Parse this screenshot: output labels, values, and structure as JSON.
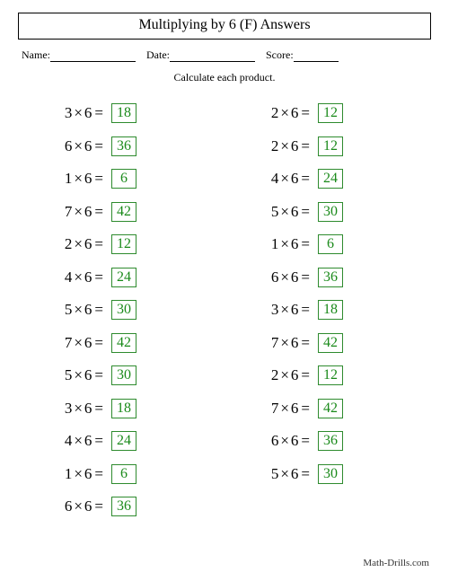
{
  "title": "Multiplying by 6 (F) Answers",
  "meta": {
    "name_label": "Name:",
    "date_label": "Date:",
    "score_label": "Score:"
  },
  "instruction": "Calculate each product.",
  "operator_symbol": "×",
  "equals_symbol": "=",
  "colors": {
    "answer_text": "#1a8a1a",
    "answer_border": "#2e8b2e",
    "text": "#000000",
    "background": "#ffffff"
  },
  "font": {
    "title_size": 16,
    "body_size": 17,
    "meta_size": 12
  },
  "columns": [
    [
      {
        "a": 3,
        "b": 6,
        "ans": 18
      },
      {
        "a": 6,
        "b": 6,
        "ans": 36
      },
      {
        "a": 1,
        "b": 6,
        "ans": 6
      },
      {
        "a": 7,
        "b": 6,
        "ans": 42
      },
      {
        "a": 2,
        "b": 6,
        "ans": 12
      },
      {
        "a": 4,
        "b": 6,
        "ans": 24
      },
      {
        "a": 5,
        "b": 6,
        "ans": 30
      },
      {
        "a": 7,
        "b": 6,
        "ans": 42
      },
      {
        "a": 5,
        "b": 6,
        "ans": 30
      },
      {
        "a": 3,
        "b": 6,
        "ans": 18
      },
      {
        "a": 4,
        "b": 6,
        "ans": 24
      },
      {
        "a": 1,
        "b": 6,
        "ans": 6
      },
      {
        "a": 6,
        "b": 6,
        "ans": 36
      }
    ],
    [
      {
        "a": 2,
        "b": 6,
        "ans": 12
      },
      {
        "a": 2,
        "b": 6,
        "ans": 12
      },
      {
        "a": 4,
        "b": 6,
        "ans": 24
      },
      {
        "a": 5,
        "b": 6,
        "ans": 30
      },
      {
        "a": 1,
        "b": 6,
        "ans": 6
      },
      {
        "a": 6,
        "b": 6,
        "ans": 36
      },
      {
        "a": 3,
        "b": 6,
        "ans": 18
      },
      {
        "a": 7,
        "b": 6,
        "ans": 42
      },
      {
        "a": 2,
        "b": 6,
        "ans": 12
      },
      {
        "a": 7,
        "b": 6,
        "ans": 42
      },
      {
        "a": 6,
        "b": 6,
        "ans": 36
      },
      {
        "a": 5,
        "b": 6,
        "ans": 30
      }
    ]
  ],
  "footer": "Math-Drills.com"
}
